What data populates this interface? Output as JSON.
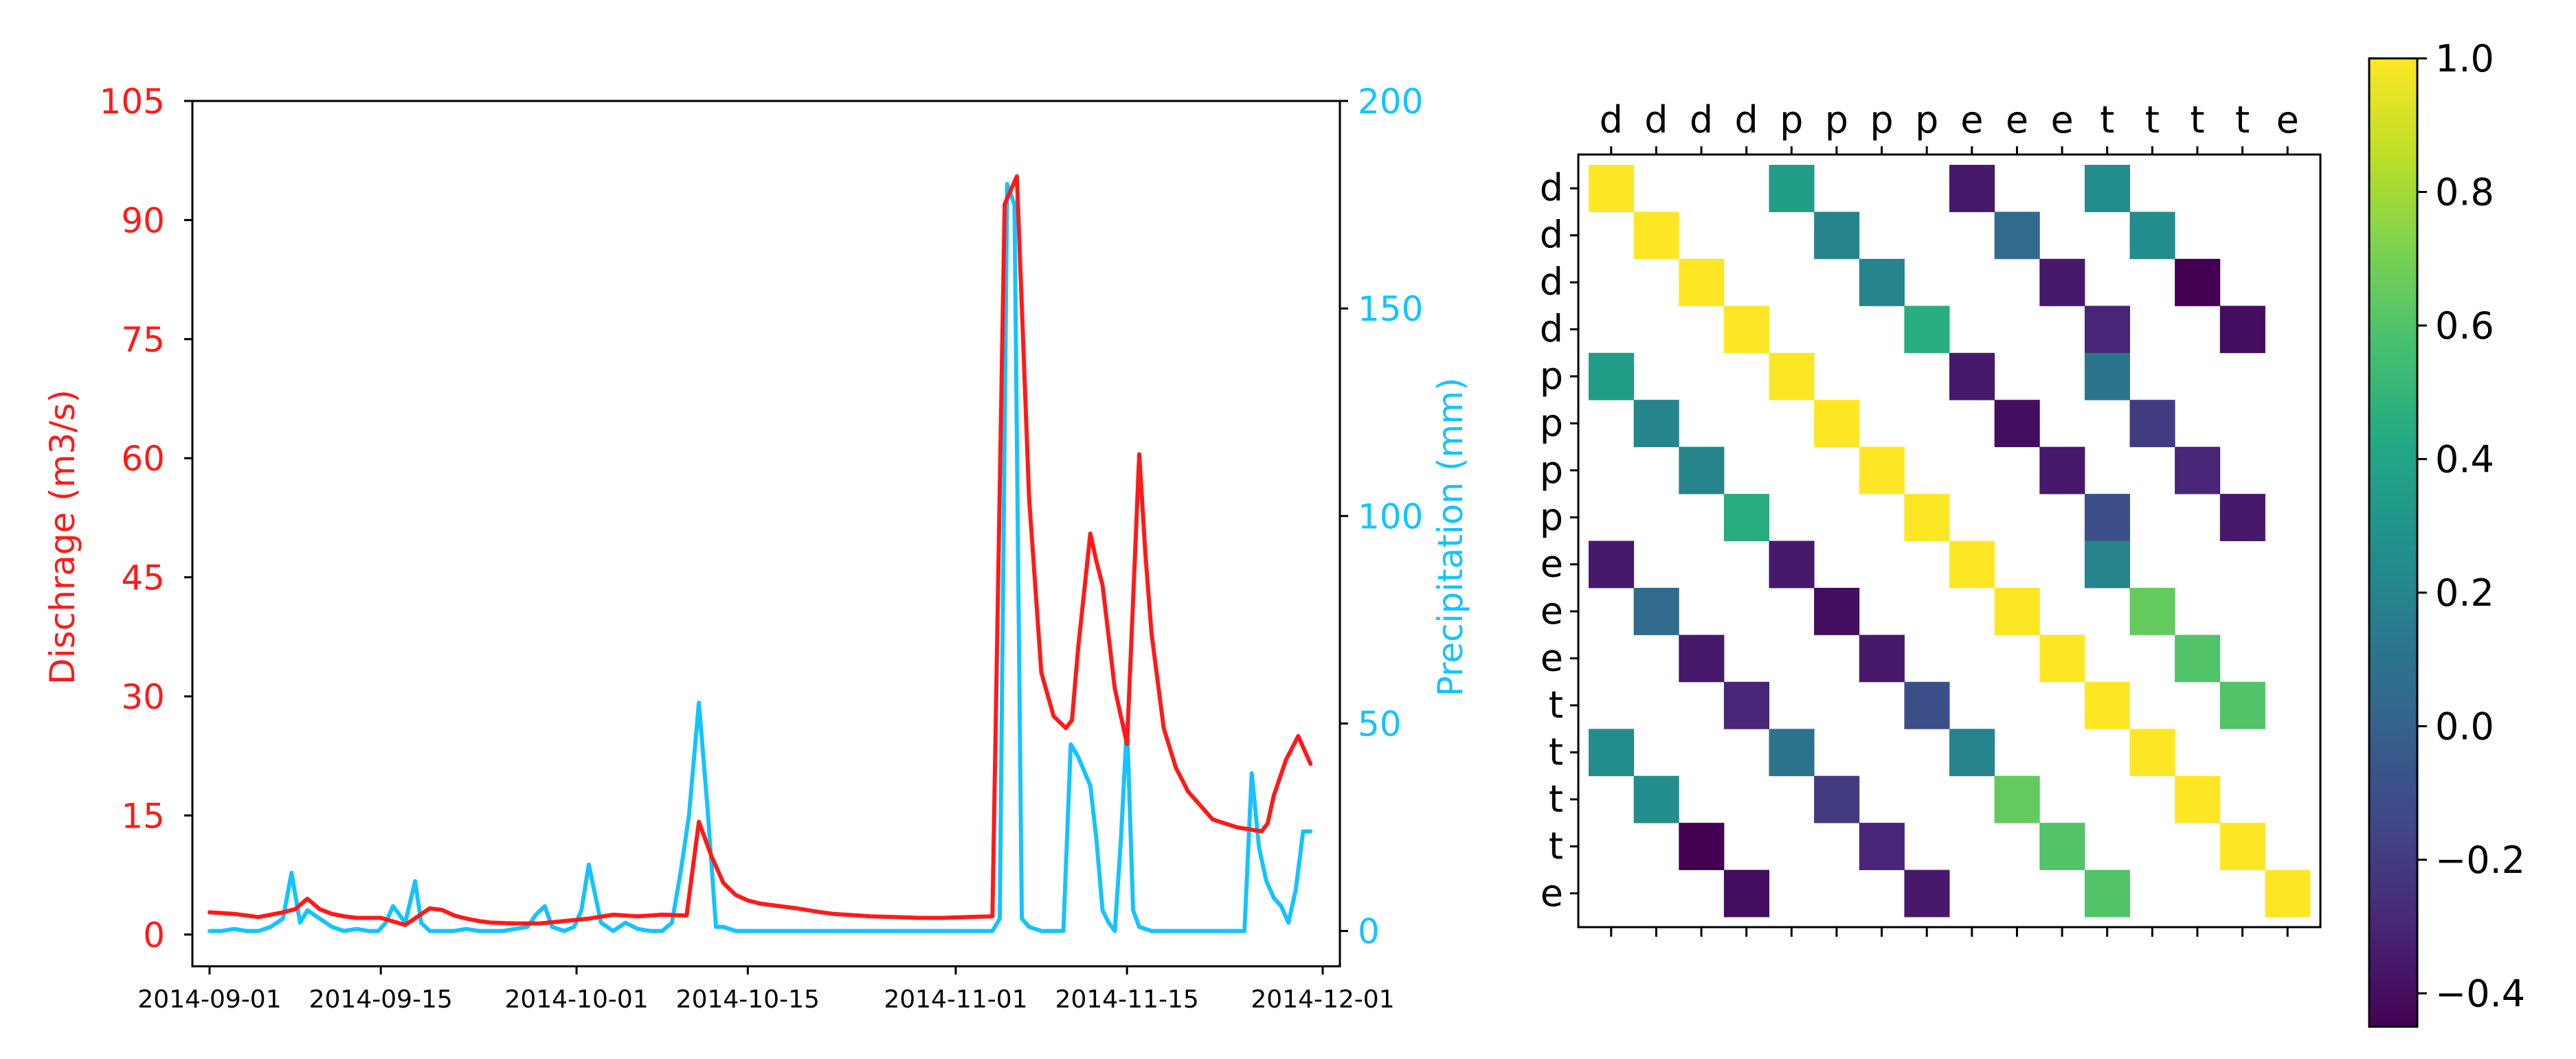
{
  "chart_data": [
    {
      "type": "line",
      "x_ticks": [
        "2014-09-01",
        "2014-09-15",
        "2014-10-01",
        "2014-10-15",
        "2014-11-01",
        "2014-11-15",
        "2014-12-01"
      ],
      "xlim": [
        0,
        91
      ],
      "y_left": {
        "label": "Dischrage (m3/s)",
        "ticks": [
          "0",
          "15",
          "30",
          "45",
          "60",
          "75",
          "90",
          "105"
        ],
        "ylim": [
          -4,
          105
        ],
        "color": "#ff1a1a"
      },
      "y_right": {
        "label": "Precipitation (mm)",
        "ticks": [
          "0",
          "50",
          "100",
          "150",
          "200"
        ],
        "ylim": [
          -8.5,
          200
        ],
        "color": "#14c3ff"
      },
      "series": [
        {
          "name": "Discharge",
          "axis": "left",
          "color": "#ff1a1a",
          "x": [
            0,
            2,
            4,
            5,
            6,
            7,
            8,
            9,
            10,
            11,
            12,
            14,
            16,
            18,
            19,
            20,
            21,
            22,
            23,
            25,
            27,
            29,
            31,
            33,
            35,
            37,
            39,
            40,
            41,
            42,
            43,
            44,
            45,
            46,
            48,
            50,
            51,
            52,
            53,
            54,
            56,
            58,
            60,
            62,
            64,
            65,
            66,
            67,
            68,
            69,
            70,
            70.5,
            71,
            72,
            72.5,
            73,
            74,
            75,
            76,
            76.5,
            77,
            78,
            79,
            80,
            82,
            84,
            86,
            86.5,
            87,
            88,
            89,
            90
          ],
          "y": [
            2.8,
            2.6,
            2.2,
            2.5,
            2.8,
            3.2,
            4.5,
            3.2,
            2.6,
            2.3,
            2.1,
            2.1,
            1.2,
            3.3,
            3.1,
            2.4,
            2.0,
            1.7,
            1.5,
            1.4,
            1.4,
            1.7,
            2.0,
            2.5,
            2.3,
            2.5,
            2.4,
            14.2,
            10,
            6.5,
            5,
            4.3,
            3.9,
            3.7,
            3.3,
            2.8,
            2.6,
            2.5,
            2.4,
            2.3,
            2.2,
            2.1,
            2.1,
            2.2,
            2.3,
            92,
            95.5,
            55,
            33,
            27.5,
            26,
            27,
            36,
            50.5,
            47,
            44,
            31,
            24,
            60.5,
            48,
            38,
            26,
            21,
            18,
            14.5,
            13.5,
            13,
            14,
            17.5,
            22,
            25,
            21.5
          ]
        },
        {
          "name": "Precipitation",
          "axis": "right",
          "color": "#14c3ff",
          "x": [
            0,
            1,
            2,
            3,
            4,
            5,
            6,
            6.7,
            7.4,
            8,
            9,
            10,
            11,
            12,
            13,
            13.8,
            14.4,
            15,
            16,
            16.8,
            17.3,
            18,
            19,
            20,
            21,
            22,
            23,
            24,
            25,
            26,
            26.7,
            27.4,
            28,
            29,
            29.8,
            30.4,
            31,
            32,
            33,
            34,
            35,
            36,
            37,
            37.8,
            38.5,
            39.2,
            40,
            40.7,
            41.4,
            42,
            43,
            44,
            45,
            46,
            48,
            50,
            52,
            54,
            56,
            58,
            60,
            62,
            64,
            64.6,
            65.2,
            65.8,
            66.4,
            67,
            68,
            68.6,
            69.2,
            69.8,
            70.4,
            71,
            72,
            72.5,
            73,
            73.5,
            74,
            74.5,
            75,
            75.5,
            76,
            77,
            78,
            80,
            82,
            84,
            84.6,
            85.2,
            85.8,
            86.4,
            87,
            87.6,
            88.2,
            88.8,
            89.4,
            90
          ],
          "y": [
            0,
            0,
            0.5,
            0,
            0,
            1,
            3,
            14,
            2,
            5,
            3,
            1,
            0,
            0.5,
            0,
            0,
            2,
            6,
            2,
            12,
            2,
            0,
            0,
            0,
            0.5,
            0,
            0,
            0,
            0.5,
            1,
            4,
            6,
            1,
            0,
            1,
            5,
            16,
            2,
            0,
            2,
            0.5,
            0,
            0,
            2,
            14,
            28,
            55,
            30,
            1,
            1,
            0,
            0,
            0,
            0,
            0,
            0,
            0,
            0,
            0,
            0,
            0,
            0,
            0,
            3,
            180,
            175,
            3,
            1,
            0,
            0,
            0,
            0,
            45,
            42,
            35,
            22,
            5,
            2,
            0,
            22,
            50,
            5,
            1,
            0,
            0,
            0,
            0,
            0,
            0,
            38,
            20,
            12,
            8,
            6,
            2,
            10,
            24,
            24
          ]
        }
      ]
    },
    {
      "type": "heatmap",
      "row_labels": [
        "d",
        "d",
        "d",
        "d",
        "p",
        "p",
        "p",
        "p",
        "e",
        "e",
        "e",
        "t",
        "t",
        "t",
        "t",
        "e"
      ],
      "col_labels": [
        "d",
        "d",
        "d",
        "d",
        "p",
        "p",
        "p",
        "p",
        "e",
        "e",
        "e",
        "t",
        "t",
        "t",
        "t",
        "e"
      ],
      "values": [
        [
          1.0,
          null,
          null,
          null,
          0.35,
          null,
          null,
          null,
          -0.35,
          null,
          null,
          0.25,
          null,
          null,
          null,
          null
        ],
        [
          null,
          1.0,
          null,
          null,
          null,
          0.2,
          null,
          null,
          null,
          0.05,
          null,
          null,
          0.25,
          null,
          null,
          null
        ],
        [
          null,
          null,
          1.0,
          null,
          null,
          null,
          0.2,
          null,
          null,
          null,
          -0.35,
          null,
          null,
          -0.45,
          null,
          null
        ],
        [
          null,
          null,
          null,
          1.0,
          null,
          null,
          null,
          0.45,
          null,
          null,
          null,
          -0.3,
          null,
          null,
          -0.4,
          null
        ],
        [
          0.35,
          null,
          null,
          null,
          1.0,
          null,
          null,
          null,
          -0.35,
          null,
          null,
          0.1,
          null,
          null,
          null,
          null
        ],
        [
          null,
          0.2,
          null,
          null,
          null,
          1.0,
          null,
          null,
          null,
          -0.4,
          null,
          null,
          -0.2,
          null,
          null,
          null
        ],
        [
          null,
          null,
          0.2,
          null,
          null,
          null,
          1.0,
          null,
          null,
          null,
          -0.35,
          null,
          null,
          -0.3,
          null,
          null
        ],
        [
          null,
          null,
          null,
          0.45,
          null,
          null,
          null,
          1.0,
          null,
          null,
          null,
          -0.1,
          null,
          null,
          -0.35,
          null
        ],
        [
          -0.35,
          null,
          null,
          null,
          -0.35,
          null,
          null,
          null,
          1.0,
          null,
          null,
          0.2,
          null,
          null,
          null,
          null
        ],
        [
          null,
          0.05,
          null,
          null,
          null,
          -0.4,
          null,
          null,
          null,
          1.0,
          null,
          null,
          0.65,
          null,
          null,
          null
        ],
        [
          null,
          null,
          -0.35,
          null,
          null,
          null,
          -0.35,
          null,
          null,
          null,
          1.0,
          null,
          null,
          0.6,
          null,
          null
        ],
        [
          null,
          null,
          null,
          -0.3,
          null,
          null,
          null,
          -0.1,
          null,
          null,
          null,
          1.0,
          null,
          null,
          0.6,
          null
        ],
        [
          0.25,
          null,
          null,
          null,
          0.1,
          null,
          null,
          null,
          0.2,
          null,
          null,
          null,
          1.0,
          null,
          null,
          null
        ],
        [
          null,
          0.25,
          null,
          null,
          null,
          -0.2,
          null,
          null,
          null,
          0.65,
          null,
          null,
          null,
          1.0,
          null,
          null
        ],
        [
          null,
          null,
          -0.45,
          null,
          null,
          null,
          -0.3,
          null,
          null,
          null,
          0.6,
          null,
          null,
          null,
          1.0,
          null
        ],
        [
          null,
          null,
          null,
          -0.4,
          null,
          null,
          null,
          -0.35,
          null,
          null,
          null,
          0.6,
          null,
          null,
          null,
          1.0
        ]
      ],
      "colorbar": {
        "vmin": -0.45,
        "vmax": 1.0,
        "ticks": [
          1.0,
          0.8,
          0.6,
          0.4,
          0.2,
          0.0,
          -0.2,
          -0.4
        ],
        "tick_labels": [
          "1.0",
          "0.8",
          "0.6",
          "0.4",
          "0.2",
          "0.0",
          "−0.2",
          "−0.4"
        ],
        "colormap": "viridis"
      }
    }
  ]
}
